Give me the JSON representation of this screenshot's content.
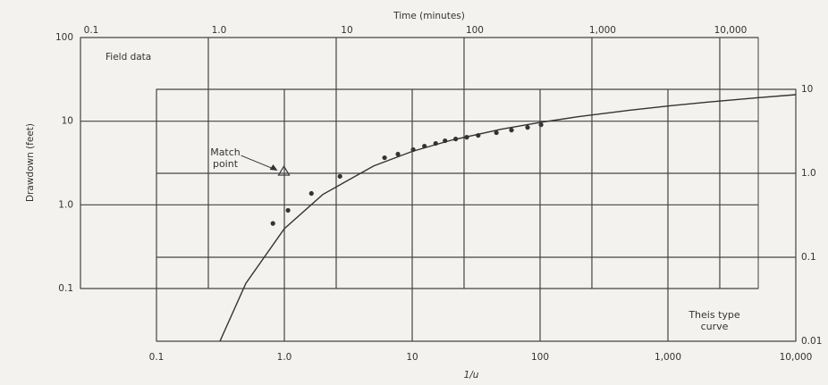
{
  "chart_data": [
    {
      "type": "scatter",
      "xlabel": "Time (minutes)",
      "ylabel": "Drawdown (feet)",
      "annotation": "Field data",
      "log": true,
      "grid": true,
      "color": "#333333",
      "x": [
        3.2,
        4.2,
        6.4,
        10.7,
        23.9,
        30.4,
        40,
        49,
        60,
        71,
        86,
        105,
        129,
        179,
        235,
        314,
        400
      ],
      "values": [
        0.6,
        0.86,
        1.37,
        2.19,
        3.66,
        4.04,
        4.57,
        5.04,
        5.42,
        5.84,
        6.12,
        6.43,
        6.76,
        7.28,
        7.83,
        8.43,
        9.06
      ],
      "xlim": [
        0.1,
        20000
      ],
      "ylim": [
        0.1,
        100
      ],
      "xticks": [
        0.1,
        {
          "value": 1,
          "label": "1.0"
        },
        10,
        100,
        {
          "value": 1000,
          "label": "1,000"
        },
        {
          "value": 10000,
          "label": "10,000"
        }
      ],
      "yticks": [
        100,
        10,
        {
          "value": 1,
          "label": "1.0"
        },
        0.1
      ],
      "match_point": {
        "label": "Match point",
        "x": 3.9,
        "y": 2.5
      }
    },
    {
      "type": "line",
      "xlabel": "1/u",
      "annotation": "Theis type curve",
      "log": true,
      "grid": true,
      "color": "#333333",
      "x": [
        0.3,
        0.5,
        1,
        2,
        5,
        10,
        20,
        50,
        100,
        200,
        500,
        1000,
        2000,
        5000,
        10000
      ],
      "values": [
        0.0086,
        0.0489,
        0.219,
        0.56,
        1.223,
        1.823,
        2.468,
        3.355,
        4.038,
        4.726,
        5.639,
        6.332,
        7.024,
        7.94,
        8.633
      ],
      "xlim": [
        0.1,
        10000
      ],
      "ylim": [
        0.01,
        10
      ],
      "xticks": [
        0.1,
        {
          "value": 1,
          "label": "1.0"
        },
        10,
        100,
        {
          "value": 1000,
          "label": "1,000"
        },
        {
          "value": 10000,
          "label": "10,000"
        }
      ],
      "yticks": [
        10,
        {
          "value": 1,
          "label": "1.0"
        },
        0.1,
        0.01
      ]
    }
  ]
}
